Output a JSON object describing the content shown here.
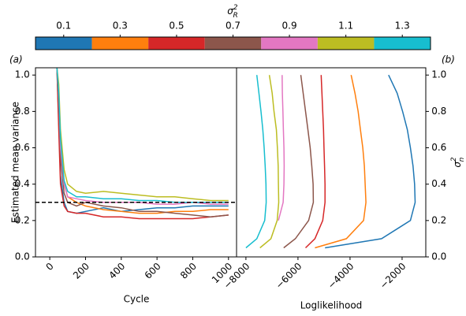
{
  "chart_data": [
    {
      "type": "colorbar",
      "label": {
        "base": "σ",
        "sub": "R",
        "sup": "2"
      },
      "categories": [
        "0.1",
        "0.3",
        "0.5",
        "0.7",
        "0.9",
        "1.1",
        "1.3"
      ],
      "colors": [
        "#1f77b4",
        "#ff7f0e",
        "#d62728",
        "#8c564b",
        "#e377c2",
        "#bcbd22",
        "#17becf"
      ]
    },
    {
      "type": "line",
      "panel_label": "(a)",
      "x_label": "Cycle",
      "y_label": "Estimated mean variance",
      "xlim": [
        -80,
        1045
      ],
      "ylim": [
        0,
        1.04
      ],
      "xticks": [
        0,
        200,
        400,
        600,
        800,
        1000
      ],
      "yticks": [
        {
          "value": 0,
          "label": "0.0"
        },
        0.2,
        0.4,
        0.6,
        0.8,
        {
          "value": 1,
          "label": "1.0"
        }
      ],
      "hline": 0.3,
      "x": [
        40,
        50,
        60,
        80,
        100,
        150,
        200,
        300,
        400,
        500,
        600,
        700,
        800,
        900,
        1000
      ],
      "series": [
        {
          "color": "#1f77b4",
          "values": [
            1.04,
            0.75,
            0.45,
            0.3,
            0.25,
            0.24,
            0.25,
            0.27,
            0.25,
            0.26,
            0.27,
            0.27,
            0.28,
            0.28,
            0.28
          ]
        },
        {
          "color": "#ff7f0e",
          "values": [
            1.04,
            0.8,
            0.55,
            0.4,
            0.33,
            0.3,
            0.28,
            0.26,
            0.25,
            0.24,
            0.24,
            0.25,
            0.25,
            0.26,
            0.26
          ]
        },
        {
          "color": "#d62728",
          "values": [
            1.04,
            0.7,
            0.4,
            0.28,
            0.25,
            0.24,
            0.24,
            0.22,
            0.22,
            0.21,
            0.21,
            0.21,
            0.21,
            0.22,
            0.23
          ]
        },
        {
          "color": "#8c564b",
          "values": [
            1.04,
            0.85,
            0.55,
            0.35,
            0.3,
            0.28,
            0.3,
            0.28,
            0.27,
            0.25,
            0.25,
            0.24,
            0.23,
            0.22,
            0.23
          ]
        },
        {
          "color": "#e377c2",
          "values": [
            1.04,
            0.9,
            0.6,
            0.4,
            0.33,
            0.32,
            0.31,
            0.3,
            0.3,
            0.3,
            0.29,
            0.29,
            0.3,
            0.29,
            0.29
          ]
        },
        {
          "color": "#bcbd22",
          "values": [
            1.04,
            0.95,
            0.7,
            0.48,
            0.4,
            0.36,
            0.35,
            0.36,
            0.35,
            0.34,
            0.33,
            0.33,
            0.32,
            0.31,
            0.31
          ]
        },
        {
          "color": "#17becf",
          "values": [
            1.04,
            0.9,
            0.65,
            0.42,
            0.36,
            0.33,
            0.33,
            0.32,
            0.32,
            0.31,
            0.31,
            0.3,
            0.3,
            0.3,
            0.3
          ]
        }
      ]
    },
    {
      "type": "line",
      "panel_label": "(b)",
      "x_label": "Loglikelihood",
      "y_label": {
        "base": "σ",
        "sub": "n",
        "sup": "2"
      },
      "xlim": [
        -8360,
        -1090
      ],
      "ylim": [
        0,
        1.04
      ],
      "xticks": [
        {
          "value": -8000,
          "label": "−8000"
        },
        {
          "value": -6000,
          "label": "−6000"
        },
        {
          "value": -4000,
          "label": "−4000"
        },
        {
          "value": -2000,
          "label": "−2000"
        }
      ],
      "yticks": [
        {
          "value": 0,
          "label": "0.0"
        },
        0.2,
        0.4,
        0.6,
        0.8,
        {
          "value": 1,
          "label": "1.0"
        }
      ],
      "y": [
        0.05,
        0.1,
        0.2,
        0.3,
        0.4,
        0.5,
        0.6,
        0.7,
        0.8,
        0.9,
        1.0
      ],
      "series": [
        {
          "color": "#1f77b4",
          "x": [
            -4960,
            -2790,
            -1680,
            -1500,
            -1520,
            -1580,
            -1680,
            -1800,
            -1980,
            -2190,
            -2520
          ]
        },
        {
          "color": "#ff7f0e",
          "x": [
            -5350,
            -4140,
            -3480,
            -3390,
            -3420,
            -3450,
            -3510,
            -3600,
            -3690,
            -3810,
            -3960
          ]
        },
        {
          "color": "#d62728",
          "x": [
            -5710,
            -5350,
            -5050,
            -4960,
            -4960,
            -4980,
            -5000,
            -5020,
            -5050,
            -5080,
            -5110
          ]
        },
        {
          "color": "#8c564b",
          "x": [
            -6550,
            -6100,
            -5590,
            -5410,
            -5420,
            -5470,
            -5530,
            -5620,
            -5710,
            -5800,
            -5890
          ]
        },
        {
          "color": "#e377c2",
          "x": [
            null,
            null,
            -6750,
            -6570,
            -6540,
            -6530,
            -6540,
            -6560,
            -6580,
            -6600,
            -6610
          ]
        },
        {
          "color": "#bcbd22",
          "x": [
            -7460,
            -7040,
            -6800,
            -6740,
            -6750,
            -6760,
            -6790,
            -6830,
            -6920,
            -6990,
            -7100
          ]
        },
        {
          "color": "#17becf",
          "x": [
            -8000,
            -7580,
            -7280,
            -7220,
            -7230,
            -7260,
            -7300,
            -7350,
            -7420,
            -7500,
            -7580
          ]
        }
      ]
    }
  ]
}
